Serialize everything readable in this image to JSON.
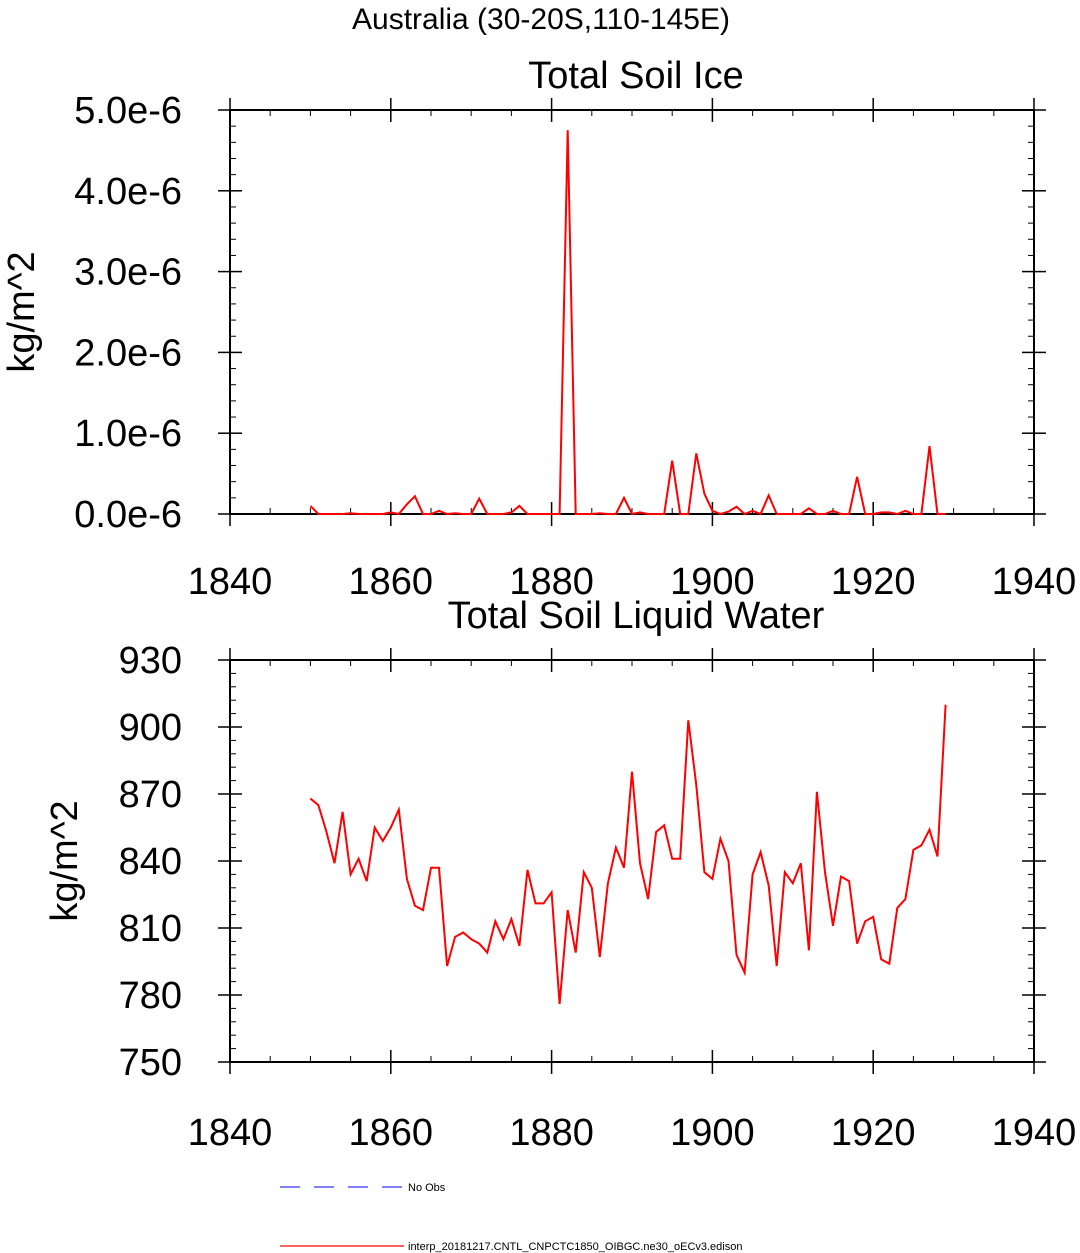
{
  "region_title": "Australia (30-20S,110-145E)",
  "chart_data": [
    {
      "type": "line",
      "title": "Total Soil Ice",
      "xlabel": "",
      "ylabel": "kg/m^2",
      "xlim": [
        1840,
        1940
      ],
      "ylim": [
        0,
        5e-06
      ],
      "x_ticks": [
        1840,
        1860,
        1880,
        1900,
        1920,
        1940
      ],
      "x_tick_labels": [
        "1840",
        "1860",
        "1880",
        "1900",
        "1920",
        "1940"
      ],
      "y_ticks": [
        0,
        1e-06,
        2e-06,
        3e-06,
        4e-06,
        5e-06
      ],
      "y_tick_labels": [
        "0.0e-6",
        "1.0e-6",
        "2.0e-6",
        "3.0e-6",
        "4.0e-6",
        "5.0e-6"
      ],
      "grid": false,
      "series": [
        {
          "name": "interp_20181217.CNTL_CNPCTC1850_OIBGC.ne30_oECv3.edison",
          "color": "#ff0000",
          "x": [
            1850,
            1851,
            1852,
            1853,
            1854,
            1855,
            1856,
            1857,
            1858,
            1859,
            1860,
            1861,
            1862,
            1863,
            1864,
            1865,
            1866,
            1867,
            1868,
            1869,
            1870,
            1871,
            1872,
            1873,
            1874,
            1875,
            1876,
            1877,
            1878,
            1879,
            1880,
            1881,
            1882,
            1883,
            1884,
            1885,
            1886,
            1887,
            1888,
            1889,
            1890,
            1891,
            1892,
            1893,
            1894,
            1895,
            1896,
            1897,
            1898,
            1899,
            1900,
            1901,
            1902,
            1903,
            1904,
            1905,
            1906,
            1907,
            1908,
            1909,
            1910,
            1911,
            1912,
            1913,
            1914,
            1915,
            1916,
            1917,
            1918,
            1919,
            1920,
            1921,
            1922,
            1923,
            1924,
            1925,
            1926,
            1927,
            1928,
            1929
          ],
          "y": [
            1e-07,
            0,
            0,
            0,
            0,
            1e-08,
            0,
            0,
            0,
            0,
            2e-08,
            0,
            1.2e-07,
            2.2e-07,
            0,
            0,
            4e-08,
            0,
            1e-08,
            0,
            0,
            1.9e-07,
            0,
            0,
            0,
            2e-08,
            1e-07,
            0,
            0,
            0,
            0,
            0,
            4.75e-06,
            0,
            0,
            0,
            1e-08,
            0,
            0,
            2e-07,
            0,
            2e-08,
            0,
            0,
            0,
            6.6e-07,
            0,
            0,
            7.5e-07,
            2.5e-07,
            4e-08,
            0,
            3e-08,
            9e-08,
            0,
            4e-08,
            0,
            2.3e-07,
            0,
            0,
            0,
            0,
            7e-08,
            0,
            0,
            4e-08,
            0,
            0,
            4.6e-07,
            0,
            0,
            2e-08,
            2e-08,
            0,
            4e-08,
            0,
            0,
            8.4e-07,
            0,
            0
          ]
        }
      ]
    },
    {
      "type": "line",
      "title": "Total Soil Liquid Water",
      "xlabel": "",
      "ylabel": "kg/m^2",
      "xlim": [
        1840,
        1940
      ],
      "ylim": [
        750,
        930
      ],
      "x_ticks": [
        1840,
        1860,
        1880,
        1900,
        1920,
        1940
      ],
      "x_tick_labels": [
        "1840",
        "1860",
        "1880",
        "1900",
        "1920",
        "1940"
      ],
      "y_ticks": [
        750,
        780,
        810,
        840,
        870,
        900,
        930
      ],
      "y_tick_labels": [
        "750",
        "780",
        "810",
        "840",
        "870",
        "900",
        "930"
      ],
      "grid": false,
      "series": [
        {
          "name": "interp_20181217.CNTL_CNPCTC1850_OIBGC.ne30_oECv3.edison",
          "color": "#ff0000",
          "x": [
            1850,
            1851,
            1852,
            1853,
            1854,
            1855,
            1856,
            1857,
            1858,
            1859,
            1860,
            1861,
            1862,
            1863,
            1864,
            1865,
            1866,
            1867,
            1868,
            1869,
            1870,
            1871,
            1872,
            1873,
            1874,
            1875,
            1876,
            1877,
            1878,
            1879,
            1880,
            1881,
            1882,
            1883,
            1884,
            1885,
            1886,
            1887,
            1888,
            1889,
            1890,
            1891,
            1892,
            1893,
            1894,
            1895,
            1896,
            1897,
            1898,
            1899,
            1900,
            1901,
            1902,
            1903,
            1904,
            1905,
            1906,
            1907,
            1908,
            1909,
            1910,
            1911,
            1912,
            1913,
            1914,
            1915,
            1916,
            1917,
            1918,
            1919,
            1920,
            1921,
            1922,
            1923,
            1924,
            1925,
            1926,
            1927,
            1928,
            1929
          ],
          "y": [
            868,
            865,
            853,
            839,
            862,
            834,
            841,
            831,
            855,
            849,
            855,
            863,
            832,
            820,
            818,
            837,
            837,
            793,
            806,
            808,
            805,
            803,
            799,
            813,
            805,
            814,
            802,
            836,
            821,
            821,
            826,
            776,
            818,
            799,
            835,
            828,
            797,
            830,
            846,
            837,
            880,
            839,
            823,
            853,
            856,
            841,
            841,
            903,
            874,
            835,
            832,
            850,
            840,
            798,
            790,
            834,
            844,
            829,
            793,
            835,
            830,
            839,
            800,
            871,
            835,
            811,
            833,
            831,
            803,
            813,
            815,
            796,
            794,
            819,
            823,
            845,
            847,
            854,
            842,
            910
          ]
        }
      ]
    }
  ],
  "legend": {
    "placement": "bottom",
    "entries": [
      {
        "label": "No Obs",
        "color": "#3333ff",
        "style": "dashed"
      },
      {
        "label": "interp_20181217.CNTL_CNPCTC1850_OIBGC.ne30_oECv3.edison",
        "color": "#ff0000",
        "style": "solid"
      }
    ]
  }
}
